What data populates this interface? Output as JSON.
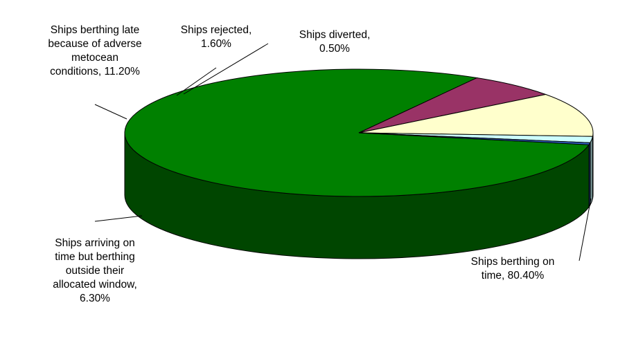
{
  "chart_data": {
    "type": "pie",
    "title": "",
    "three_d": true,
    "legend": "none",
    "slices": [
      {
        "label_lines": [
          "Ships berthing on",
          "time, 80.40%"
        ],
        "name": "Ships berthing on time",
        "value": 80.4,
        "color": "#008000"
      },
      {
        "label_lines": [
          "Ships arriving on",
          "time but berthing",
          "outside their",
          "allocated window,",
          "6.30%"
        ],
        "name": "Ships arriving on time but berthing outside their allocated window",
        "value": 6.3,
        "color": "#993366"
      },
      {
        "label_lines": [
          "Ships berthing late",
          "because of adverse",
          "metocean",
          "conditions, 11.20%"
        ],
        "name": "Ships berthing late because of adverse metocean conditions",
        "value": 11.2,
        "color": "#FFFFCC"
      },
      {
        "label_lines": [
          "Ships rejected,",
          "1.60%"
        ],
        "name": "Ships rejected",
        "value": 1.6,
        "color": "#CCFFFF"
      },
      {
        "label_lines": [
          "Ships diverted,",
          "0.50%"
        ],
        "name": "Ships diverted",
        "value": 0.5,
        "color": "#3366CC"
      }
    ]
  }
}
